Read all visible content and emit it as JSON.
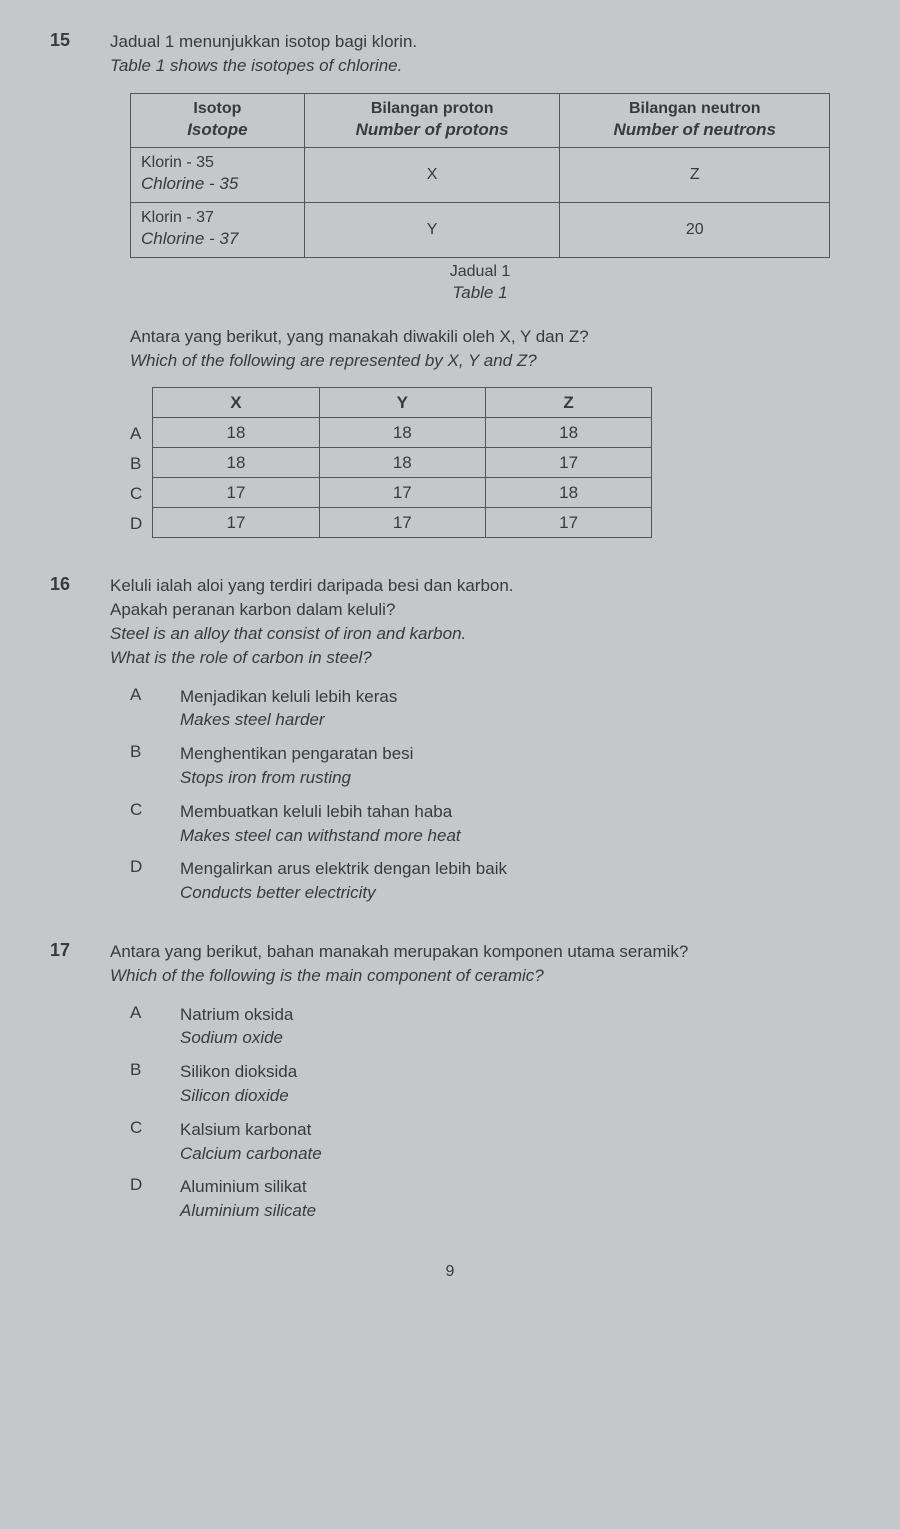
{
  "q15": {
    "number": "15",
    "text_my": "Jadual 1 menunjukkan isotop bagi klorin.",
    "text_en": "Table 1 shows the isotopes of chlorine.",
    "table1": {
      "headers": {
        "col1_my": "Isotop",
        "col1_en": "Isotope",
        "col2_my": "Bilangan proton",
        "col2_en": "Number of protons",
        "col3_my": "Bilangan neutron",
        "col3_en": "Number of neutrons"
      },
      "rows": [
        {
          "iso_my": "Klorin - 35",
          "iso_en": "Chlorine - 35",
          "protons": "X",
          "neutrons": "Z"
        },
        {
          "iso_my": "Klorin - 37",
          "iso_en": "Chlorine - 37",
          "protons": "Y",
          "neutrons": "20"
        }
      ],
      "caption_my": "Jadual 1",
      "caption_en": "Table 1"
    },
    "subq_my": "Antara yang berikut, yang manakah diwakili oleh X, Y dan Z?",
    "subq_en": "Which of the following are represented by X, Y and Z?",
    "table2": {
      "headers": [
        "X",
        "Y",
        "Z"
      ],
      "labels": [
        "A",
        "B",
        "C",
        "D"
      ],
      "rows": [
        [
          "18",
          "18",
          "18"
        ],
        [
          "18",
          "18",
          "17"
        ],
        [
          "17",
          "17",
          "18"
        ],
        [
          "17",
          "17",
          "17"
        ]
      ]
    }
  },
  "q16": {
    "number": "16",
    "text_my1": "Keluli ialah aloi yang terdiri daripada besi dan karbon.",
    "text_my2": "Apakah peranan karbon dalam keluli?",
    "text_en1": "Steel is an alloy that consist of iron and karbon.",
    "text_en2": "What is the role of carbon in steel?",
    "options": [
      {
        "letter": "A",
        "my": "Menjadikan keluli lebih keras",
        "en": "Makes steel harder"
      },
      {
        "letter": "B",
        "my": "Menghentikan pengaratan besi",
        "en": "Stops iron from rusting"
      },
      {
        "letter": "C",
        "my": "Membuatkan keluli lebih tahan haba",
        "en": "Makes steel can withstand more heat"
      },
      {
        "letter": "D",
        "my": "Mengalirkan arus elektrik dengan lebih baik",
        "en": "Conducts better electricity"
      }
    ]
  },
  "q17": {
    "number": "17",
    "text_my": "Antara yang berikut, bahan manakah merupakan komponen utama seramik?",
    "text_en": "Which of the following is the main component of ceramic?",
    "options": [
      {
        "letter": "A",
        "my": "Natrium oksida",
        "en": "Sodium oxide"
      },
      {
        "letter": "B",
        "my": "Silikon dioksida",
        "en": "Silicon dioxide"
      },
      {
        "letter": "C",
        "my": "Kalsium karbonat",
        "en": "Calcium carbonate"
      },
      {
        "letter": "D",
        "my": "Aluminium silikat",
        "en": "Aluminium silicate"
      }
    ]
  },
  "page_number": "9"
}
